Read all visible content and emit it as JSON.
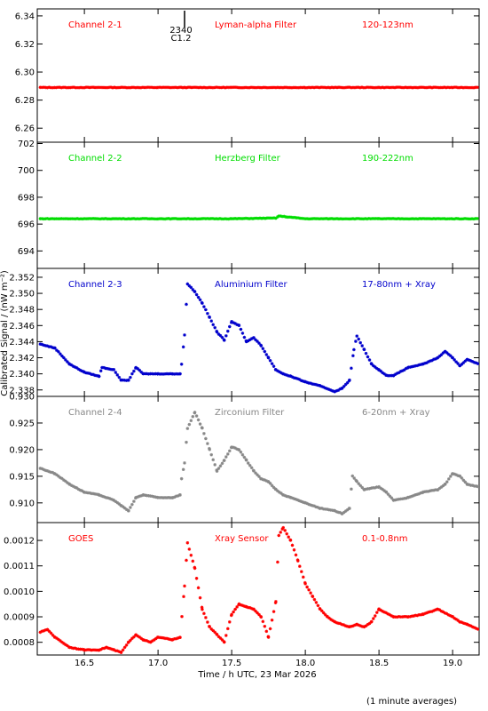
{
  "figure": {
    "xlabel": "Time / h UTC, 23 Mar 2026",
    "ylabel": "Calibrated Signal / (nW m⁻²)",
    "footnote": "(1 minute averages)",
    "x_ticks": [
      "16.5",
      "17.0",
      "17.5",
      "18.0",
      "18.5",
      "19.0"
    ],
    "xlim": [
      16.18,
      19.18
    ],
    "flare_marker": {
      "time": 17.18,
      "labels": [
        "2340",
        "C1.2"
      ]
    }
  },
  "chart_data": [
    {
      "type": "scatter",
      "channel": "Channel 2-1",
      "filter": "Lyman-alpha Filter",
      "band": "120-123nm",
      "color": "#ff0000",
      "ylim": [
        6.25,
        6.345
      ],
      "yticks": [
        "6.26",
        "6.28",
        "6.30",
        "6.32",
        "6.34"
      ],
      "x": [
        16.2,
        16.5,
        17.0,
        17.5,
        18.0,
        18.5,
        19.0,
        19.18
      ],
      "y": [
        6.289,
        6.289,
        6.289,
        6.289,
        6.289,
        6.289,
        6.289,
        6.289
      ]
    },
    {
      "type": "scatter",
      "channel": "Channel 2-2",
      "filter": "Herzberg Filter",
      "band": "190-222nm",
      "color": "#00dd00",
      "ylim": [
        692.7,
        702.1
      ],
      "yticks": [
        "694",
        "696",
        "698",
        "700",
        "702"
      ],
      "x": [
        16.2,
        16.5,
        17.0,
        17.5,
        17.8,
        17.82,
        18.0,
        18.5,
        19.0,
        19.18
      ],
      "y": [
        696.4,
        696.4,
        696.4,
        696.4,
        696.45,
        696.6,
        696.4,
        696.4,
        696.4,
        696.4
      ]
    },
    {
      "type": "scatter",
      "channel": "Channel 2-3",
      "filter": "Aluminium Filter",
      "band": "17-80nm + Xray",
      "color": "#0000cc",
      "ylim": [
        2.3372,
        2.3531
      ],
      "yticks": [
        "2.338",
        "2.340",
        "2.342",
        "2.344",
        "2.346",
        "2.348",
        "2.350",
        "2.352"
      ],
      "x": [
        16.2,
        16.3,
        16.4,
        16.5,
        16.6,
        16.62,
        16.7,
        16.75,
        16.8,
        16.85,
        16.9,
        17.0,
        17.1,
        17.15,
        17.16,
        17.18,
        17.2,
        17.25,
        17.3,
        17.35,
        17.4,
        17.45,
        17.5,
        17.55,
        17.6,
        17.65,
        17.7,
        17.75,
        17.8,
        17.85,
        17.9,
        18.0,
        18.1,
        18.2,
        18.25,
        18.3,
        18.33,
        18.35,
        18.4,
        18.45,
        18.5,
        18.55,
        18.6,
        18.7,
        18.8,
        18.9,
        18.95,
        19.0,
        19.05,
        19.1,
        19.18
      ],
      "y": [
        2.3437,
        2.3432,
        2.3412,
        2.3402,
        2.3397,
        2.3408,
        2.3405,
        2.3392,
        2.3392,
        2.3408,
        2.34,
        2.34,
        2.34,
        2.34,
        2.3412,
        2.3448,
        2.3512,
        2.3502,
        2.3488,
        2.347,
        2.3452,
        2.3442,
        2.3465,
        2.346,
        2.344,
        2.3445,
        2.3435,
        2.342,
        2.3405,
        2.34,
        2.3397,
        2.339,
        2.3385,
        2.3378,
        2.3382,
        2.3392,
        2.343,
        2.3447,
        2.343,
        2.3412,
        2.3405,
        2.3398,
        2.3398,
        2.3408,
        2.3412,
        2.342,
        2.3428,
        2.342,
        2.341,
        2.3418,
        2.3412
      ]
    },
    {
      "type": "scatter",
      "channel": "Channel 2-4",
      "filter": "Zirconium Filter",
      "band": "6-20nm + Xray",
      "color": "#888888",
      "ylim": [
        0.9063,
        0.93
      ],
      "yticks": [
        "0.910",
        "0.915",
        "0.920",
        "0.925",
        "0.930"
      ],
      "x": [
        16.2,
        16.3,
        16.4,
        16.5,
        16.6,
        16.7,
        16.75,
        16.8,
        16.85,
        16.9,
        17.0,
        17.1,
        17.15,
        17.16,
        17.18,
        17.2,
        17.25,
        17.3,
        17.35,
        17.4,
        17.45,
        17.5,
        17.55,
        17.6,
        17.65,
        17.7,
        17.75,
        17.8,
        17.85,
        17.9,
        18.0,
        18.1,
        18.2,
        18.25,
        18.3,
        18.32,
        18.35,
        18.4,
        18.5,
        18.55,
        18.6,
        18.7,
        18.8,
        18.9,
        18.95,
        19.0,
        19.05,
        19.1,
        19.18
      ],
      "y": [
        0.9165,
        0.9155,
        0.9135,
        0.912,
        0.9115,
        0.9105,
        0.9095,
        0.9085,
        0.911,
        0.9115,
        0.911,
        0.911,
        0.9115,
        0.9145,
        0.9175,
        0.924,
        0.927,
        0.924,
        0.92,
        0.916,
        0.918,
        0.9205,
        0.92,
        0.918,
        0.916,
        0.9145,
        0.914,
        0.9125,
        0.9115,
        0.911,
        0.91,
        0.909,
        0.9085,
        0.908,
        0.909,
        0.915,
        0.914,
        0.9125,
        0.913,
        0.912,
        0.9105,
        0.911,
        0.912,
        0.9125,
        0.9135,
        0.9155,
        0.915,
        0.9135,
        0.913
      ]
    },
    {
      "type": "scatter",
      "channel": "GOES",
      "filter": "Xray Sensor",
      "band": "0.1-0.8nm",
      "color": "#ff0000",
      "ylim": [
        0.00075,
        0.00127
      ],
      "yticks": [
        "0.0008",
        "0.0009",
        "0.0010",
        "0.0011",
        "0.0012"
      ],
      "x": [
        16.2,
        16.25,
        16.3,
        16.4,
        16.5,
        16.6,
        16.65,
        16.7,
        16.75,
        16.8,
        16.85,
        16.9,
        16.95,
        17.0,
        17.1,
        17.15,
        17.18,
        17.2,
        17.25,
        17.3,
        17.35,
        17.4,
        17.45,
        17.5,
        17.55,
        17.6,
        17.65,
        17.7,
        17.75,
        17.8,
        17.82,
        17.85,
        17.9,
        17.95,
        18.0,
        18.05,
        18.1,
        18.15,
        18.2,
        18.3,
        18.35,
        18.4,
        18.45,
        18.5,
        18.6,
        18.7,
        18.8,
        18.9,
        19.0,
        19.05,
        19.1,
        19.18
      ],
      "y": [
        0.00084,
        0.00085,
        0.00082,
        0.00078,
        0.00077,
        0.00077,
        0.00078,
        0.00077,
        0.00076,
        0.0008,
        0.00083,
        0.00081,
        0.0008,
        0.00082,
        0.00081,
        0.00082,
        0.00102,
        0.00119,
        0.00109,
        0.00093,
        0.00086,
        0.00083,
        0.0008,
        0.00091,
        0.00095,
        0.00094,
        0.00093,
        0.0009,
        0.00082,
        0.00096,
        0.00122,
        0.00125,
        0.0012,
        0.00112,
        0.00103,
        0.00098,
        0.00093,
        0.0009,
        0.00088,
        0.00086,
        0.00087,
        0.00086,
        0.00088,
        0.00093,
        0.0009,
        0.0009,
        0.00091,
        0.00093,
        0.0009,
        0.00088,
        0.00087,
        0.00085
      ]
    }
  ]
}
